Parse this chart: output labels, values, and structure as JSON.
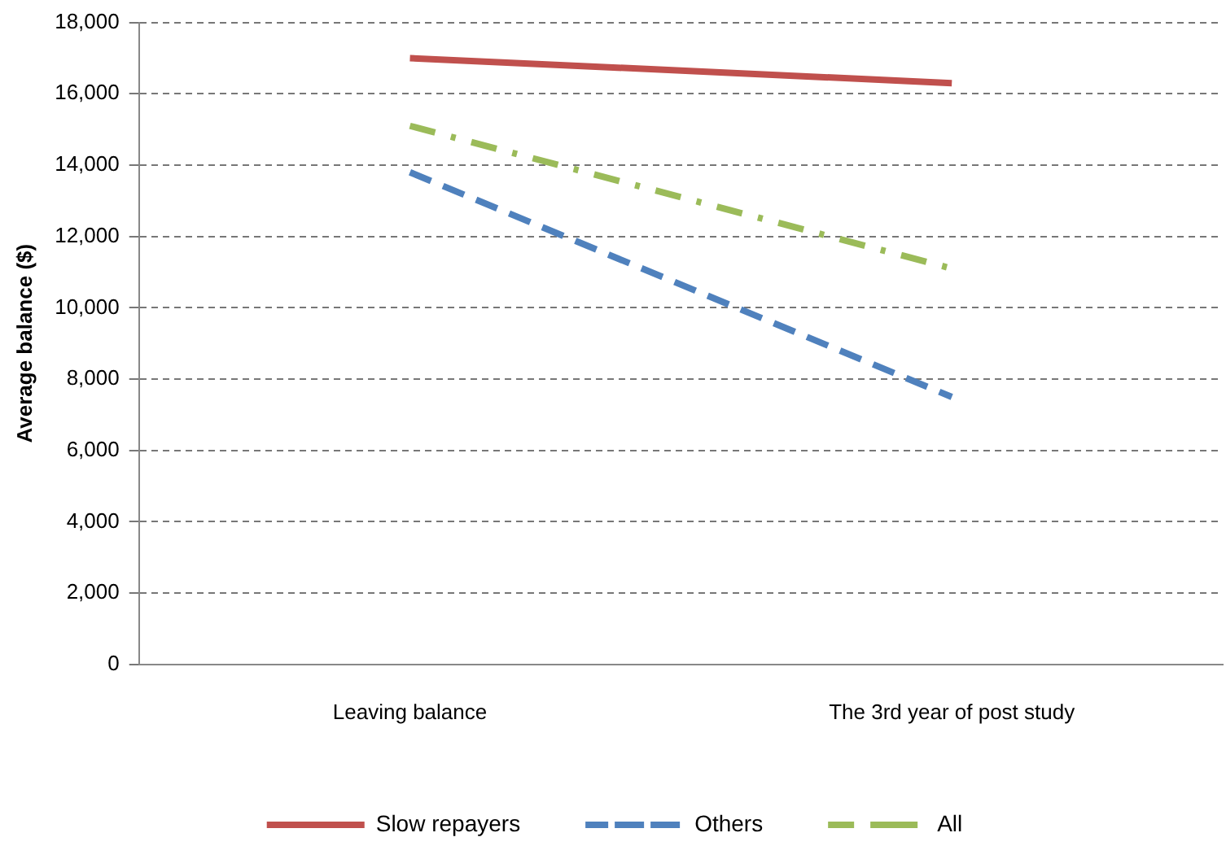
{
  "chart_data": {
    "type": "line",
    "ylabel": "Average balance ($)",
    "categories": [
      "Leaving balance",
      "The 3rd year of post study"
    ],
    "series": [
      {
        "name": "Slow repayers",
        "color": "#c0504d",
        "values": [
          17000,
          16300
        ],
        "line_style": "solid"
      },
      {
        "name": "Others",
        "color": "#4f81bd",
        "values": [
          13800,
          7500
        ],
        "line_style": "dashed"
      },
      {
        "name": "All",
        "color": "#9bbb59",
        "values": [
          15100,
          11100
        ],
        "line_style": "dashdot"
      }
    ],
    "ylim": [
      0,
      18000
    ],
    "yticks": [
      0,
      {
        "value": 2000,
        "label": "2,000"
      },
      {
        "value": 4000,
        "label": "4,000"
      },
      {
        "value": 6000,
        "label": "6,000"
      },
      {
        "value": 8000,
        "label": "8,000"
      },
      {
        "value": 10000,
        "label": "10,000"
      },
      {
        "value": 12000,
        "label": "12,000"
      },
      {
        "value": 14000,
        "label": "14,000"
      },
      {
        "value": 16000,
        "label": "16,000"
      },
      {
        "value": 18000,
        "label": "18,000"
      }
    ],
    "grid": "y",
    "legend": "bottom",
    "marker": "none"
  }
}
